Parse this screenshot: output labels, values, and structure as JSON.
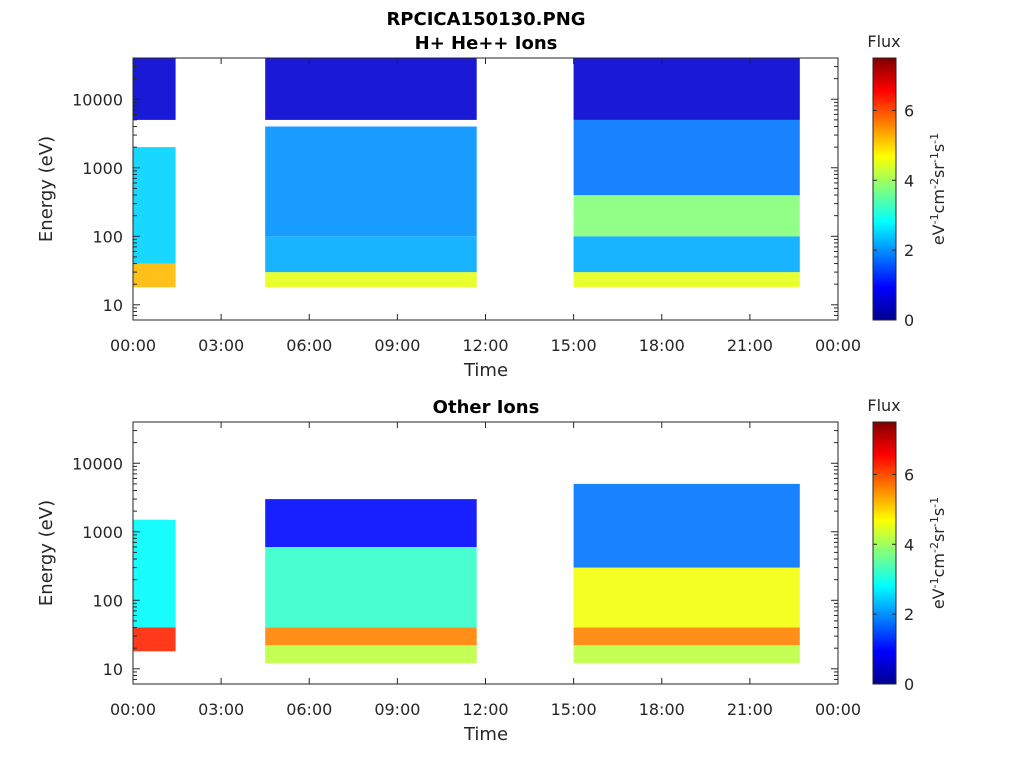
{
  "figure": {
    "title_line1": "RPCICA150130.PNG"
  },
  "chart_data": [
    {
      "type": "heatmap",
      "title": "H+ He++ Ions",
      "xlabel": "Time",
      "ylabel": "Energy (eV)",
      "x_ticks": [
        "00:00",
        "03:00",
        "06:00",
        "09:00",
        "12:00",
        "15:00",
        "18:00",
        "21:00",
        "00:00"
      ],
      "x_range_hours": [
        0,
        24
      ],
      "y_scale": "log",
      "y_ticks": [
        "10",
        "100",
        "1000",
        "10000"
      ],
      "y_tick_values": [
        10,
        100,
        1000,
        10000
      ],
      "y_range": [
        6,
        40000
      ],
      "colorbar": {
        "title": "Flux",
        "label": "eV-1cm-2sr-1s-1",
        "ticks": [
          "0",
          "2",
          "4",
          "6"
        ],
        "range": [
          0,
          7.5
        ],
        "colormap": "jet"
      },
      "data_intervals_hours": [
        [
          0,
          1.45
        ],
        [
          4.5,
          11.7
        ],
        [
          15.0,
          22.7
        ]
      ],
      "bands": [
        {
          "intervals": [
            [
              0,
              1.45
            ]
          ],
          "e_low": 18,
          "e_high": 40,
          "flux": 5.2
        },
        {
          "intervals": [
            [
              0,
              1.45
            ]
          ],
          "e_low": 40,
          "e_high": 2000,
          "flux": 2.5
        },
        {
          "intervals": [
            [
              4.5,
              11.7
            ],
            [
              15.0,
              22.7
            ]
          ],
          "e_low": 18,
          "e_high": 30,
          "flux": 4.5
        },
        {
          "intervals": [
            [
              4.5,
              11.7
            ],
            [
              15.0,
              22.7
            ]
          ],
          "e_low": 30,
          "e_high": 100,
          "flux": 2.2
        },
        {
          "intervals": [
            [
              4.5,
              11.7
            ]
          ],
          "e_low": 100,
          "e_high": 4000,
          "flux": 2.0
        },
        {
          "intervals": [
            [
              15.0,
              22.7
            ]
          ],
          "e_low": 100,
          "e_high": 400,
          "flux": 3.8
        },
        {
          "intervals": [
            [
              15.0,
              22.7
            ]
          ],
          "e_low": 400,
          "e_high": 5000,
          "flux": 1.8
        },
        {
          "intervals": [
            [
              0,
              1.45
            ],
            [
              4.5,
              11.7
            ],
            [
              15.0,
              22.7
            ]
          ],
          "e_low": 5000,
          "e_high": 40000,
          "flux": 0.6
        }
      ]
    },
    {
      "type": "heatmap",
      "title": "Other Ions",
      "xlabel": "Time",
      "ylabel": "Energy (eV)",
      "x_ticks": [
        "00:00",
        "03:00",
        "06:00",
        "09:00",
        "12:00",
        "15:00",
        "18:00",
        "21:00",
        "00:00"
      ],
      "x_range_hours": [
        0,
        24
      ],
      "y_scale": "log",
      "y_ticks": [
        "10",
        "100",
        "1000",
        "10000"
      ],
      "y_tick_values": [
        10,
        100,
        1000,
        10000
      ],
      "y_range": [
        6,
        40000
      ],
      "colorbar": {
        "title": "Flux",
        "label": "eV-1cm-2sr-1s-1",
        "ticks": [
          "0",
          "2",
          "4",
          "6"
        ],
        "range": [
          0,
          7.5
        ],
        "colormap": "jet"
      },
      "data_intervals_hours": [
        [
          0,
          1.45
        ],
        [
          4.5,
          11.7
        ],
        [
          15.0,
          22.7
        ]
      ],
      "bands": [
        {
          "intervals": [
            [
              0,
              1.45
            ]
          ],
          "e_low": 18,
          "e_high": 40,
          "flux": 6.3
        },
        {
          "intervals": [
            [
              0,
              1.45
            ]
          ],
          "e_low": 40,
          "e_high": 1500,
          "flux": 2.8
        },
        {
          "intervals": [
            [
              4.5,
              11.7
            ],
            [
              15.0,
              22.7
            ]
          ],
          "e_low": 12,
          "e_high": 22,
          "flux": 4.2
        },
        {
          "intervals": [
            [
              4.5,
              11.7
            ],
            [
              15.0,
              22.7
            ]
          ],
          "e_low": 22,
          "e_high": 40,
          "flux": 5.6
        },
        {
          "intervals": [
            [
              4.5,
              11.7
            ]
          ],
          "e_low": 40,
          "e_high": 600,
          "flux": 3.2
        },
        {
          "intervals": [
            [
              15.0,
              22.7
            ]
          ],
          "e_low": 40,
          "e_high": 300,
          "flux": 4.6
        },
        {
          "intervals": [
            [
              15.0,
              22.7
            ]
          ],
          "e_low": 300,
          "e_high": 5000,
          "flux": 1.8
        },
        {
          "intervals": [
            [
              4.5,
              11.7
            ]
          ],
          "e_low": 600,
          "e_high": 3000,
          "flux": 1.0
        }
      ]
    }
  ]
}
